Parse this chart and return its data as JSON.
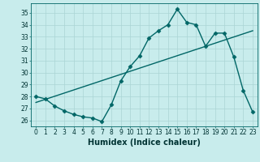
{
  "x_values": [
    0,
    1,
    2,
    3,
    4,
    5,
    6,
    7,
    8,
    9,
    10,
    11,
    12,
    13,
    14,
    15,
    16,
    17,
    18,
    19,
    20,
    21,
    22,
    23
  ],
  "y_values": [
    28.0,
    27.8,
    27.2,
    26.8,
    26.5,
    26.3,
    26.2,
    25.9,
    27.3,
    29.3,
    30.5,
    31.4,
    32.9,
    33.5,
    34.0,
    35.3,
    34.2,
    34.0,
    32.2,
    33.3,
    33.3,
    31.3,
    28.5,
    26.7
  ],
  "line_color": "#006666",
  "bg_color": "#c8ecec",
  "grid_color": "#aad4d4",
  "xlabel": "Humidex (Indice chaleur)",
  "ylabel_ticks": [
    26,
    27,
    28,
    29,
    30,
    31,
    32,
    33,
    34,
    35
  ],
  "ylim": [
    25.5,
    35.8
  ],
  "xlim": [
    -0.5,
    23.5
  ],
  "trend_x": [
    0,
    23
  ],
  "trend_y": [
    27.5,
    33.5
  ],
  "marker_size": 2.5,
  "linewidth": 1.0,
  "font_color": "#003333",
  "tick_fontsize": 5.5,
  "label_fontsize": 7.0
}
